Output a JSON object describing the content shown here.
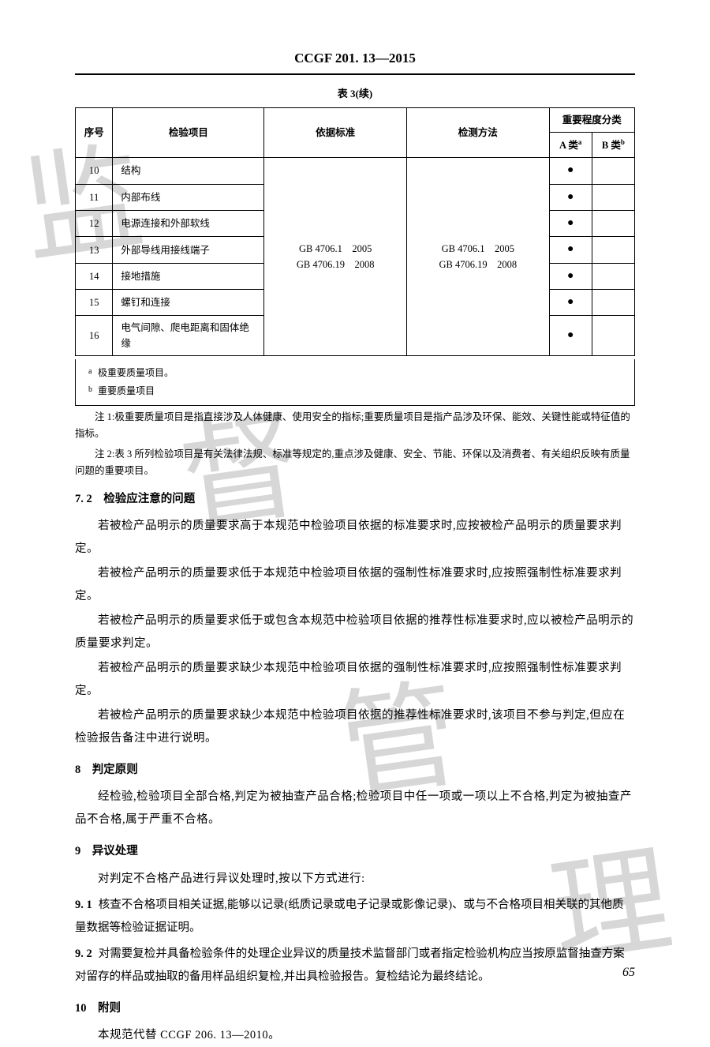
{
  "header": "CCGF 201. 13—2015",
  "tableCaption": "表 3(续)",
  "tableHeaders": {
    "seq": "序号",
    "item": "检验项目",
    "standard": "依据标准",
    "method": "检测方法",
    "importance": "重要程度分类",
    "classA": "A 类",
    "classB": "B 类",
    "supA": "a",
    "supB": "b"
  },
  "standardsText1": "GB 4706.1　2005",
  "standardsText2": "GB 4706.19　2008",
  "methodsText1": "GB 4706.1　2005",
  "methodsText2": "GB 4706.19　2008",
  "rows": [
    {
      "seq": "10",
      "item": "结构",
      "a": "●",
      "b": ""
    },
    {
      "seq": "11",
      "item": "内部布线",
      "a": "●",
      "b": ""
    },
    {
      "seq": "12",
      "item": "电源连接和外部软线",
      "a": "●",
      "b": ""
    },
    {
      "seq": "13",
      "item": "外部导线用接线端子",
      "a": "●",
      "b": ""
    },
    {
      "seq": "14",
      "item": "接地措施",
      "a": "●",
      "b": ""
    },
    {
      "seq": "15",
      "item": "螺钉和连接",
      "a": "●",
      "b": ""
    },
    {
      "seq": "16",
      "item": "电气间隙、爬电距离和固体绝缘",
      "a": "●",
      "b": ""
    }
  ],
  "footnoteA": "极重要质量项目。",
  "footnoteB": "重要质量项目",
  "note1": "注 1:极重要质量项目是指直接涉及人体健康、使用安全的指标;重要质量项目是指产品涉及环保、能效、关键性能或特征值的指标。",
  "note2": "注 2:表 3 所列检验项目是有关法律法规、标准等规定的,重点涉及健康、安全、节能、环保以及消费者、有关组织反映有质量问题的重要项目。",
  "sec72": "7. 2　检验应注意的问题",
  "p72a": "若被检产品明示的质量要求高于本规范中检验项目依据的标准要求时,应按被检产品明示的质量要求判定。",
  "p72b": "若被检产品明示的质量要求低于本规范中检验项目依据的强制性标准要求时,应按照强制性标准要求判定。",
  "p72c": "若被检产品明示的质量要求低于或包含本规范中检验项目依据的推荐性标准要求时,应以被检产品明示的质量要求判定。",
  "p72d": "若被检产品明示的质量要求缺少本规范中检验项目依据的强制性标准要求时,应按照强制性标准要求判定。",
  "p72e": "若被检产品明示的质量要求缺少本规范中检验项目依据的推荐性标准要求时,该项目不参与判定,但应在检验报告备注中进行说明。",
  "sec8": "8　判定原则",
  "p8": "经检验,检验项目全部合格,判定为被抽查产品合格;检验项目中任一项或一项以上不合格,判定为被抽查产品不合格,属于严重不合格。",
  "sec9": "9　异议处理",
  "p9intro": "对判定不合格产品进行异议处理时,按以下方式进行:",
  "sec91num": "9. 1",
  "sec91": "核查不合格项目相关证据,能够以记录(纸质记录或电子记录或影像记录)、或与不合格项目相关联的其他质量数据等检验证据证明。",
  "sec92num": "9. 2",
  "sec92": "对需要复检并具备检验条件的处理企业异议的质量技术监督部门或者指定检验机构应当按原监督抽查方案对留存的样品或抽取的备用样品组织复检,并出具检验报告。复检结论为最终结论。",
  "sec10": "10　附则",
  "p10": "本规范代替 CCGF 206. 13—2010。",
  "pageNum": "65",
  "watermarks": {
    "w1": "监",
    "w2": "督",
    "w3": "管",
    "w4": "理"
  }
}
